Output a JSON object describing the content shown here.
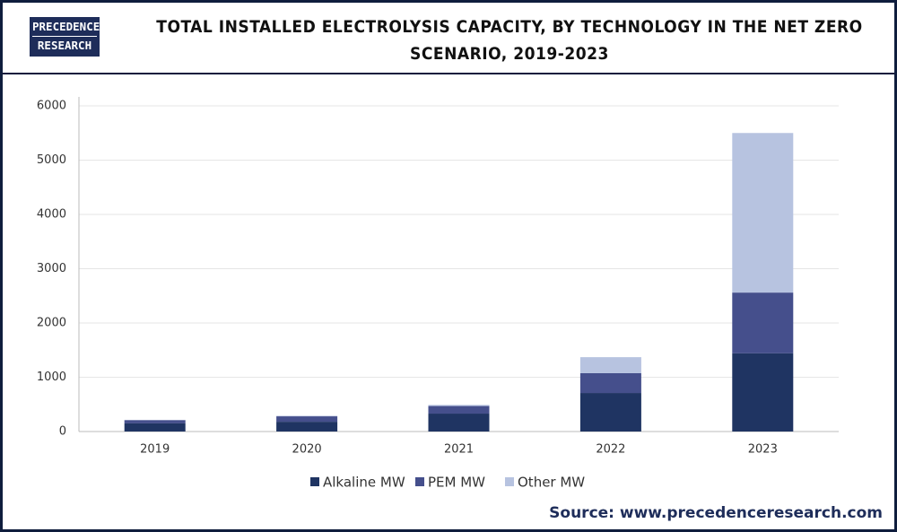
{
  "logo": [
    "PRECEDENCE",
    "RESEARCH"
  ],
  "chart_data": {
    "type": "stacked-bar",
    "title": "TOTAL INSTALLED ELECTROLYSIS CAPACITY, BY TECHNOLOGY IN THE NET ZERO SCENARIO, 2019-2023",
    "categories": [
      "2019",
      "2020",
      "2021",
      "2022",
      "2023"
    ],
    "series": [
      {
        "name": "Alkaline MW",
        "color": "#1f3462",
        "values": [
          150,
          180,
          330,
          710,
          1440
        ]
      },
      {
        "name": "PEM MW",
        "color": "#454f8c",
        "values": [
          60,
          100,
          140,
          365,
          1120
        ]
      },
      {
        "name": "Other MW",
        "color": "#b7c3e0",
        "values": [
          5,
          10,
          20,
          295,
          2940
        ]
      }
    ],
    "ylim": [
      0,
      6000
    ],
    "yticks": [
      0,
      1000,
      2000,
      3000,
      4000,
      5000,
      6000
    ],
    "grid": true,
    "legend": "bottom"
  },
  "source": "Source: www.precedenceresearch.com"
}
